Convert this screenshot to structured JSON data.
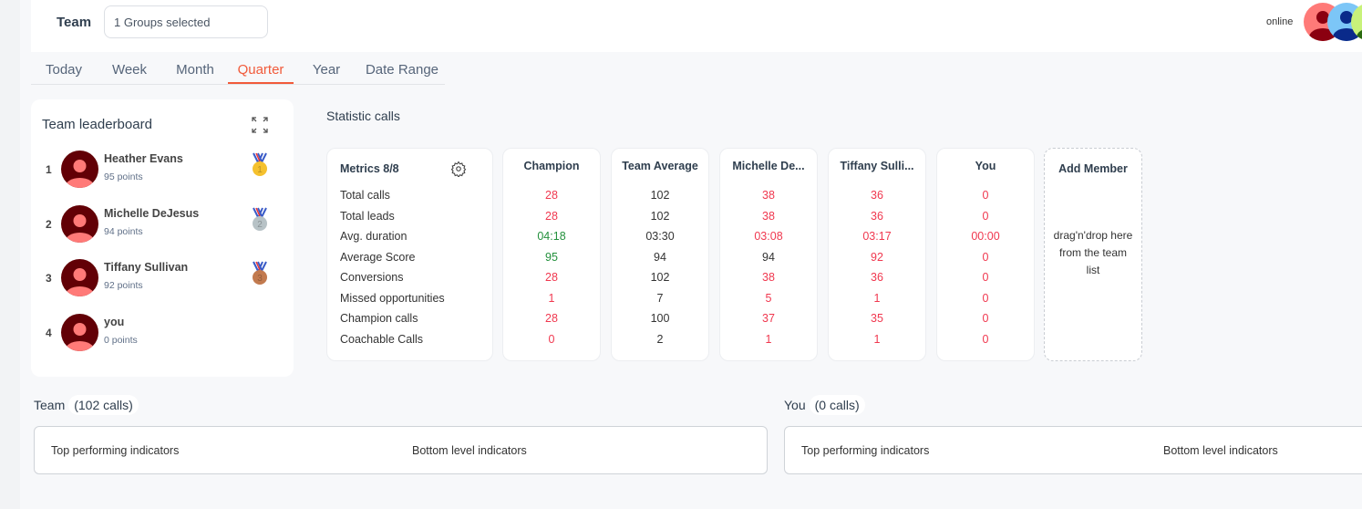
{
  "header": {
    "team_label": "Team",
    "group_select": "1 Groups selected",
    "status": "online"
  },
  "tabs": [
    {
      "label": "Today"
    },
    {
      "label": "Week"
    },
    {
      "label": "Month"
    },
    {
      "label": "Quarter",
      "active": true
    },
    {
      "label": "Year"
    },
    {
      "label": "Date Range"
    }
  ],
  "leaderboard": {
    "title": "Team leaderboard",
    "entries": [
      {
        "rank": "1",
        "name": "Heather Evans",
        "points": "95 points",
        "medal": "gold"
      },
      {
        "rank": "2",
        "name": "Michelle DeJesus",
        "points": "94 points",
        "medal": "silver"
      },
      {
        "rank": "3",
        "name": "Tiffany Sullivan",
        "points": "92 points",
        "medal": "bronze"
      },
      {
        "rank": "4",
        "name": "you",
        "points": "0 points",
        "medal": ""
      }
    ]
  },
  "stats": {
    "title": "Statistic calls",
    "metrics_header": "Metrics 8/8",
    "metrics": [
      "Total calls",
      "Total leads",
      "Avg. duration",
      "Average Score",
      "Conversions",
      "Missed opportunities",
      "Champion calls",
      "Coachable Calls"
    ],
    "columns": [
      {
        "name": "Champion",
        "values": [
          "28",
          "28",
          "04:18",
          "95",
          "28",
          "1",
          "28",
          "0"
        ],
        "colors": [
          "red",
          "red",
          "green",
          "green",
          "red",
          "red",
          "red",
          "red"
        ]
      },
      {
        "name": "Team Average",
        "values": [
          "102",
          "102",
          "03:30",
          "94",
          "102",
          "7",
          "100",
          "2"
        ],
        "colors": [
          "dark",
          "dark",
          "dark",
          "dark",
          "dark",
          "dark",
          "dark",
          "dark"
        ]
      },
      {
        "name": "Michelle De...",
        "values": [
          "38",
          "38",
          "03:08",
          "94",
          "38",
          "5",
          "37",
          "1"
        ],
        "colors": [
          "red",
          "red",
          "red",
          "dark",
          "red",
          "red",
          "red",
          "red"
        ]
      },
      {
        "name": "Tiffany Sulli...",
        "values": [
          "36",
          "36",
          "03:17",
          "92",
          "36",
          "1",
          "35",
          "1"
        ],
        "colors": [
          "red",
          "red",
          "red",
          "red",
          "red",
          "red",
          "red",
          "red"
        ]
      },
      {
        "name": "You",
        "values": [
          "0",
          "0",
          "00:00",
          "0",
          "0",
          "0",
          "0",
          "0"
        ],
        "colors": [
          "red",
          "red",
          "red",
          "red",
          "red",
          "red",
          "red",
          "red"
        ]
      }
    ],
    "add_member": {
      "title": "Add Member",
      "hint": "drag'n'drop here from the team list"
    }
  },
  "colors": {
    "red": "#f0384f",
    "green": "#23903c",
    "dark": "#333333",
    "accent": "#f15a3a"
  },
  "team_section": {
    "title": "Team",
    "count": "(102 calls)",
    "top": "Top performing indicators",
    "bottom": "Bottom level indicators"
  },
  "you_section": {
    "title": "You",
    "count": "(0 calls)",
    "top": "Top performing indicators",
    "bottom": "Bottom level indicators"
  }
}
